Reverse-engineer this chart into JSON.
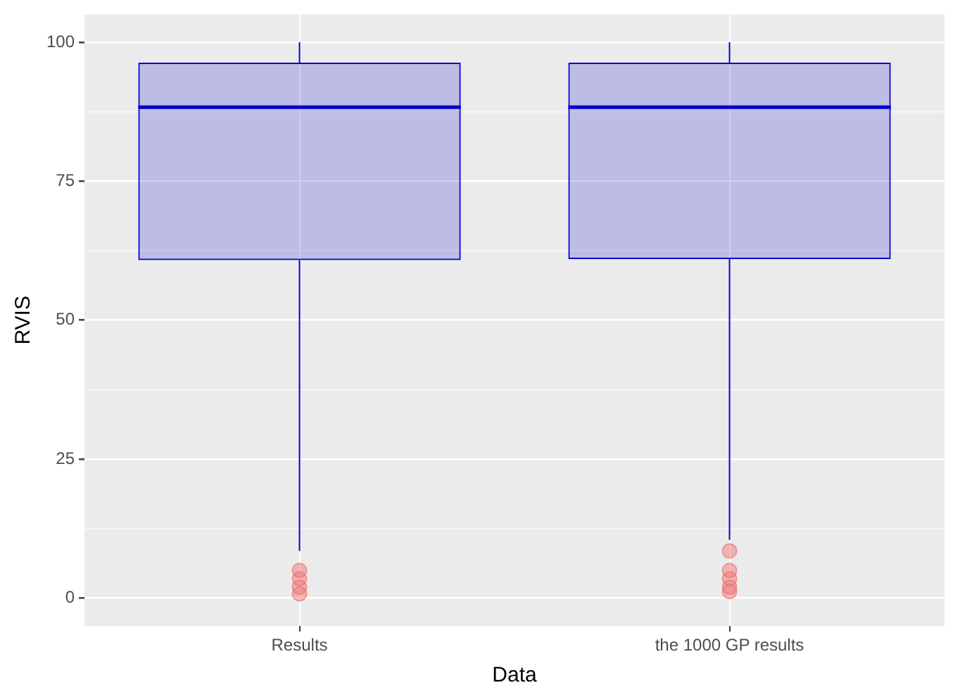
{
  "chart_data": {
    "type": "box",
    "xlabel": "Data",
    "ylabel": "RVIS",
    "categories": [
      "Results",
      "the 1000 GP results"
    ],
    "series": [
      {
        "color": "#0000cc",
        "boxes": [
          {
            "low": 8.5,
            "q1": 60.8,
            "median": 88.3,
            "q3": 96.3,
            "high": 100,
            "outliers": [
              5,
              3.5,
              2,
              0.8
            ]
          },
          {
            "low": 10.5,
            "q1": 61,
            "median": 88.3,
            "q3": 96.3,
            "high": 100,
            "outliers": [
              8.5,
              5,
              3.5,
              2,
              1.2
            ]
          }
        ]
      }
    ],
    "ylim": [
      -5,
      105
    ],
    "yticks": [
      0,
      {
        "value": 12.5,
        "label": null
      },
      25,
      {
        "value": 37.5,
        "label": null
      },
      50,
      {
        "value": 62.5,
        "label": null
      },
      75,
      {
        "value": 87.5,
        "label": null
      },
      100
    ],
    "grid": true,
    "legend": false
  }
}
